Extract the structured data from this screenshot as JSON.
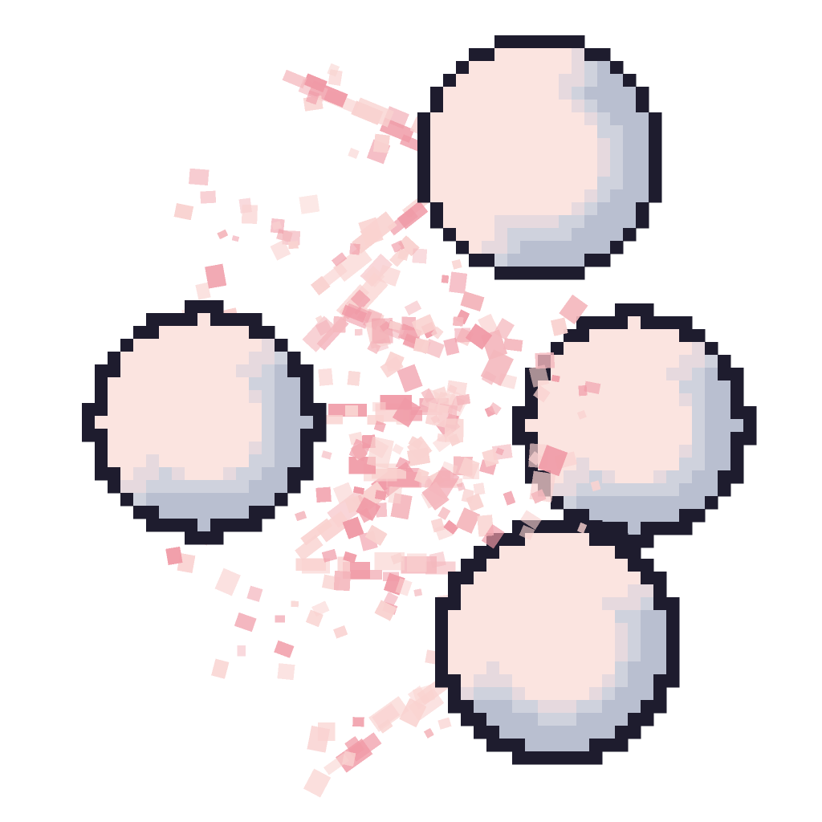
{
  "scene": {
    "title": "",
    "visible_text": []
  },
  "palette": {
    "background": "#ffffff",
    "outline": "#1e1c2e",
    "fill": "#fbe4e0",
    "shade_light": "#e6d9de",
    "shade_mid": "#cfd2dd",
    "shade_dark": "#b9bfd0",
    "highlight": "#fdeeea",
    "particle_light": "#f9d2d0",
    "particle_mid": "#f4b7bd",
    "particle_dark": "#f09aa6"
  },
  "sprites": [
    {
      "name": "pixel-ball-left",
      "kind": "ball"
    },
    {
      "name": "pixel-ball-top",
      "kind": "ball"
    },
    {
      "name": "pixel-ball-right",
      "kind": "ball"
    },
    {
      "name": "pixel-ball-bottom",
      "kind": "ball"
    }
  ],
  "effect": {
    "name": "pixel-particle-burst",
    "kind": "particles"
  }
}
